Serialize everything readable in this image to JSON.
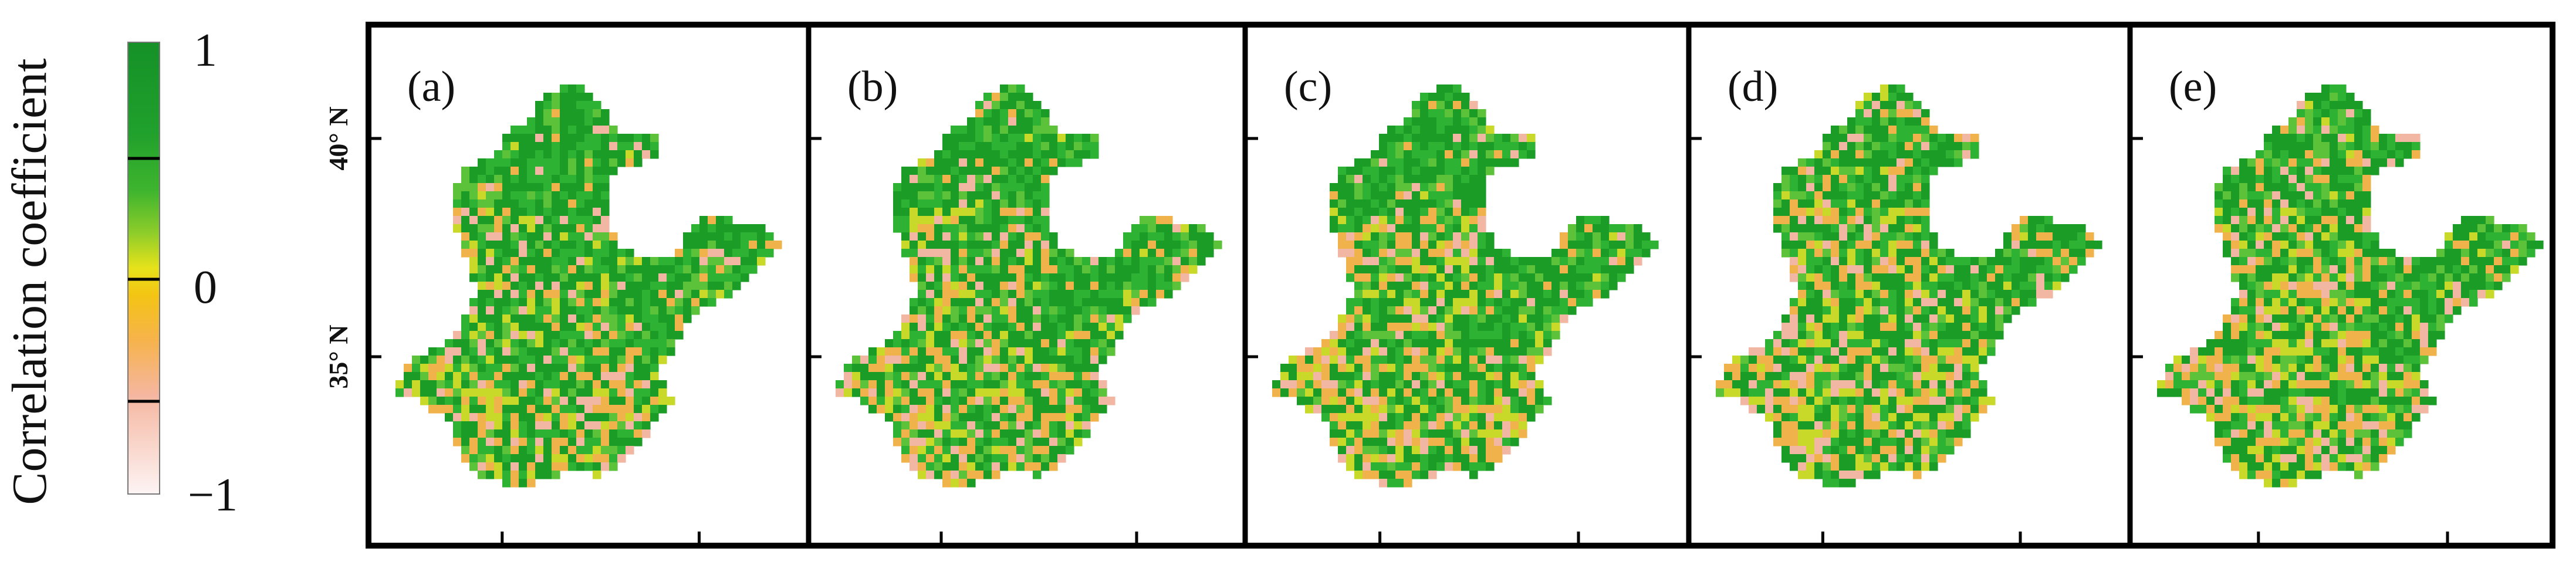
{
  "colorbar": {
    "title": "Correlation coefficient",
    "ticks": [
      {
        "value": "1"
      },
      {
        "value": "0"
      },
      {
        "value": "−1"
      }
    ],
    "colors": [
      "#1b9a2a",
      "#27a82e",
      "#4bb92d",
      "#8fcf2a",
      "#d7e01a",
      "#f2cb10",
      "#f4b24a",
      "#f3b08a",
      "#f6cbc3",
      "#fbeeee"
    ]
  },
  "latitude_labels": [
    {
      "text": "40° N"
    },
    {
      "text": "35° N"
    }
  ],
  "panels": [
    {
      "label": "(a)",
      "green_share": 0.68
    },
    {
      "label": "(b)",
      "green_share": 0.66
    },
    {
      "label": "(c)",
      "green_share": 0.64
    },
    {
      "label": "(d)",
      "green_share": 0.6
    },
    {
      "label": "(e)",
      "green_share": 0.58
    }
  ],
  "map_colors": {
    "green_dark": "#1a9c27",
    "green": "#2eb234",
    "green_light": "#5cc23a",
    "yellow": "#c9d92a",
    "orange": "#f0b24a",
    "pink": "#f2b7a2"
  }
}
